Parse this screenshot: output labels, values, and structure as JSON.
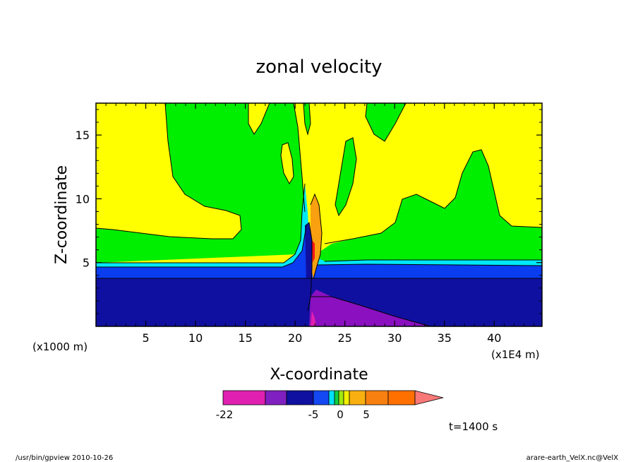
{
  "chart_data": {
    "type": "heatmap",
    "title": "zonal velocity",
    "xlabel": "X-coordinate",
    "ylabel": "Z-coordinate",
    "x_unit_label": "(x1E4 m)",
    "y_unit_label": "(x1000 m)",
    "x_ticks": [
      5,
      10,
      15,
      20,
      25,
      30,
      35,
      40
    ],
    "y_ticks": [
      5,
      10,
      15
    ],
    "xlim": [
      0,
      44.8
    ],
    "ylim": [
      0,
      17.5
    ],
    "time_label": "t=1400 s",
    "colorbar": {
      "tick_labels": [
        {
          "value": -22,
          "label": "-22"
        },
        {
          "value": -5,
          "label": "-5"
        },
        {
          "value": 0,
          "label": "0"
        },
        {
          "value": 5,
          "label": "5"
        }
      ],
      "colors": [
        "#e020b0",
        "#8020c0",
        "#1010a0",
        "#1448f0",
        "#00e0f8",
        "#10d040",
        "#a0e810",
        "#f0f000",
        "#f8b010",
        "#f88010",
        "#ff7000",
        "#f81818",
        "#f87878"
      ]
    },
    "regions_description": "contour fill of zonal velocity"
  },
  "footer": {
    "left": "/usr/bin/gpview   2010-10-26",
    "right": "arare-earth_VelX.nc@VelX"
  },
  "colors": {
    "yellow": "#ffff00",
    "green": "#00ee00",
    "cyan": "#00e8f8",
    "blue": "#0a3cf0",
    "navy": "#1010a0",
    "purple": "#8a10c0",
    "magenta": "#e020b0",
    "orange": "#f8a010",
    "red": "#f81818"
  }
}
